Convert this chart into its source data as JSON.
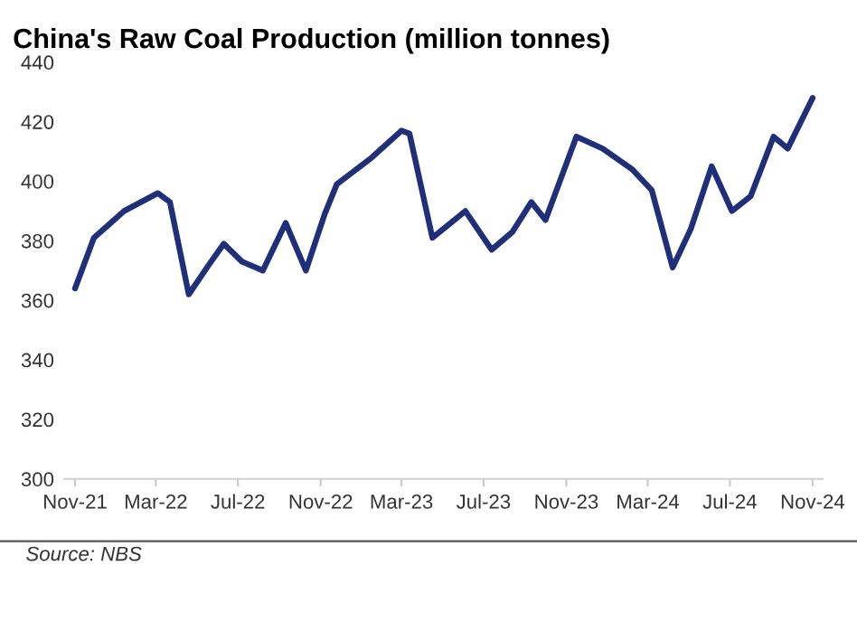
{
  "chart_data": {
    "type": "line",
    "title": "China's Raw Coal Production (million tonnes)",
    "x": [
      "2021-11-01",
      "2021-11-29",
      "2022-01-13",
      "2022-03-04",
      "2022-03-22",
      "2022-04-19",
      "2022-05-19",
      "2022-06-10",
      "2022-07-07",
      "2022-08-07",
      "2022-09-10",
      "2022-10-10",
      "2022-11-07",
      "2022-11-25",
      "2023-01-16",
      "2023-03-01",
      "2023-03-13",
      "2023-04-16",
      "2023-06-04",
      "2023-07-13",
      "2023-08-13",
      "2023-09-10",
      "2023-10-01",
      "2023-11-16",
      "2023-12-25",
      "2024-02-07",
      "2024-03-07",
      "2024-04-07",
      "2024-05-04",
      "2024-06-04",
      "2024-07-04",
      "2024-08-01",
      "2024-09-04",
      "2024-09-25",
      "2024-11-01"
    ],
    "series": [
      {
        "color": "#1f2f7a",
        "values": [
          364,
          381,
          390,
          396,
          393,
          362,
          372,
          379,
          373,
          370,
          386,
          370,
          389,
          399,
          408,
          417,
          416,
          381,
          390,
          377,
          383,
          393,
          387,
          415,
          411,
          404,
          397,
          371,
          384,
          405,
          390,
          395,
          415,
          411,
          428
        ]
      }
    ],
    "xlim": [
      "2021-10-16",
      "2024-11-16"
    ],
    "xticks": [
      {
        "value": "2021-11-01",
        "label": "Nov-21"
      },
      {
        "value": "2022-03-01",
        "label": "Mar-22"
      },
      {
        "value": "2022-07-01",
        "label": "Jul-22"
      },
      {
        "value": "2022-11-01",
        "label": "Nov-22"
      },
      {
        "value": "2023-03-01",
        "label": "Mar-23"
      },
      {
        "value": "2023-07-01",
        "label": "Jul-23"
      },
      {
        "value": "2023-11-01",
        "label": "Nov-23"
      },
      {
        "value": "2024-03-01",
        "label": "Mar-24"
      },
      {
        "value": "2024-07-01",
        "label": "Jul-24"
      },
      {
        "value": "2024-11-01",
        "label": "Nov-24"
      }
    ],
    "ylim": [
      300,
      440
    ],
    "yticks": [
      300,
      320,
      340,
      360,
      380,
      400,
      420,
      440
    ],
    "grid": false,
    "marker": "none",
    "line_style": "solid",
    "annotations": [
      "Source: NBS"
    ]
  }
}
